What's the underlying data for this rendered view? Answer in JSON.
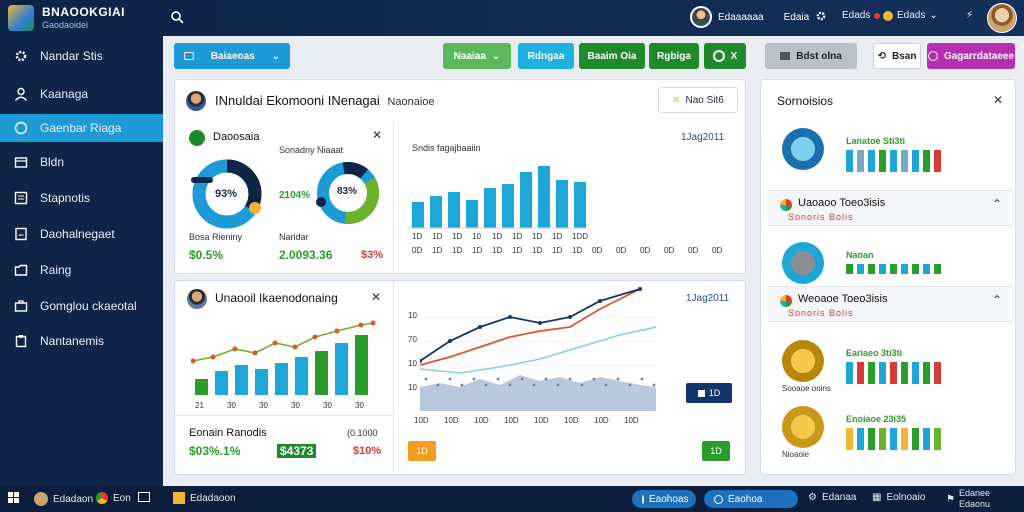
{
  "app": {
    "logo_title": "BNAOOKGIAI",
    "logo_subtitle": "Gaodaoidei",
    "user_name": "Edaaaaaa",
    "user_role": "Edaia",
    "top_item_1": "Edads",
    "top_item_2": "Edads",
    "top_avatar_icon": "user-avatar"
  },
  "sidebar": {
    "items": [
      {
        "label": "Nandar Stis",
        "icon": "gear-icon"
      },
      {
        "label": "Kaanaga",
        "icon": "user-icon"
      },
      {
        "label": "Gaenbar Riaga",
        "icon": "chat-icon"
      },
      {
        "label": "Bldn",
        "icon": "store-icon"
      },
      {
        "label": "Stapnotis",
        "icon": "list-icon"
      },
      {
        "label": "Daohalnegaet",
        "icon": "document-icon"
      },
      {
        "label": "Raing",
        "icon": "folder-icon"
      },
      {
        "label": "Gomglou ckaeotal",
        "icon": "briefcase-icon"
      },
      {
        "label": "Nantanemis",
        "icon": "clipboard-icon"
      }
    ],
    "active_index": 2
  },
  "toolbar": {
    "dropdown_label": "Baiaeoas",
    "btn1": "Naaiaa",
    "btn2": "Rdngaa",
    "btn3": "Baaim Oia",
    "btn4": "Rgbiga",
    "btn5": "Bdst olna",
    "btn6": "Bsan",
    "btn7": "Gagarrdataeee"
  },
  "main_card": {
    "title": "INnuldai Ekomooni INenagai",
    "title_suffix": "Naonaioe",
    "badge": "Nao Sit6",
    "donut_panel": {
      "title": "Daoosaia",
      "subtitle": "Sonadny Niaaat",
      "donut1_value": "93%",
      "donut2_value": "83%",
      "mid_value": "2104%",
      "left_label": "Bosa Rieniny",
      "left_value": "$0.5%",
      "mid_label": "Naridar",
      "mid_value2": "2.0093.36",
      "right_value": "$3%"
    },
    "bar_panel": {
      "title": "Sndis fagajbaaiin",
      "date": "1Jag2011",
      "x_labels": [
        "1D",
        "1D",
        "1D",
        "10",
        "1D",
        "1D",
        "1D",
        "1D",
        "1DD"
      ],
      "x_labels2": [
        "0D",
        "1D",
        "1D",
        "1D",
        "1D",
        "1D",
        "1D",
        "1D",
        "1D"
      ],
      "x_labels3": [
        "0D",
        "0D",
        "0D",
        "0D",
        "0D",
        "0D"
      ]
    }
  },
  "second_card": {
    "title": "Unaooil Ikaenodonaing",
    "date": "1Jag2011",
    "bar_x_labels": [
      "21",
      "30",
      "30",
      "30",
      "30",
      "30"
    ],
    "footer_label": "Eonain Ranodis",
    "footer_value": "(0.1000",
    "footer_v1": "$03%.1%",
    "footer_v2": "$4373",
    "footer_v3": "$10%",
    "line_y_labels": [
      "10",
      "70",
      "10",
      "10"
    ],
    "line_x_labels": [
      "10D",
      "10D",
      "10D",
      "10D",
      "10D",
      "10D",
      "10D",
      "10D"
    ],
    "btn_left": "1D",
    "btn_right": "1D",
    "btn_dark": "1D"
  },
  "right_panel": {
    "title": "Sornoisios",
    "rows": [
      {
        "label": "Lanatoe Sti3ti",
        "sub": "",
        "icon": "globe-icon"
      },
      {
        "label": "Uaoaoo Toeo3isis",
        "sub": "Sonoris Bolis",
        "icon": "chart-icon"
      },
      {
        "label": "Naoan",
        "sub": "",
        "icon": "bank-icon"
      },
      {
        "label": "Weoaoe Toeo3isis",
        "sub": "Sonoris Bolis",
        "icon": "chart-icon"
      },
      {
        "label": "Eariaeo 3ti3ti",
        "sub": "Sooaoe ooins",
        "icon": "coins-icon"
      },
      {
        "label": "Enoiaoe 23i35",
        "sub": "Nioaoie",
        "icon": "bitcoin-icon"
      }
    ]
  },
  "taskbar": {
    "item1": "Edadaon",
    "item2": "Eon",
    "item3": "Edadaoon",
    "pill1": "Eaohoas",
    "pill2": "Eaohoa",
    "item4": "Edanaa",
    "item5": "Eolnoaio",
    "clock1": "Edanee",
    "clock2": "Edaonu"
  },
  "colors": {
    "sidebar_bg": "#0f2547",
    "active": "#1e9bd6",
    "bar_blue": "#1ea6d6",
    "green": "#2a9d2a",
    "red": "#d43b3b"
  }
}
